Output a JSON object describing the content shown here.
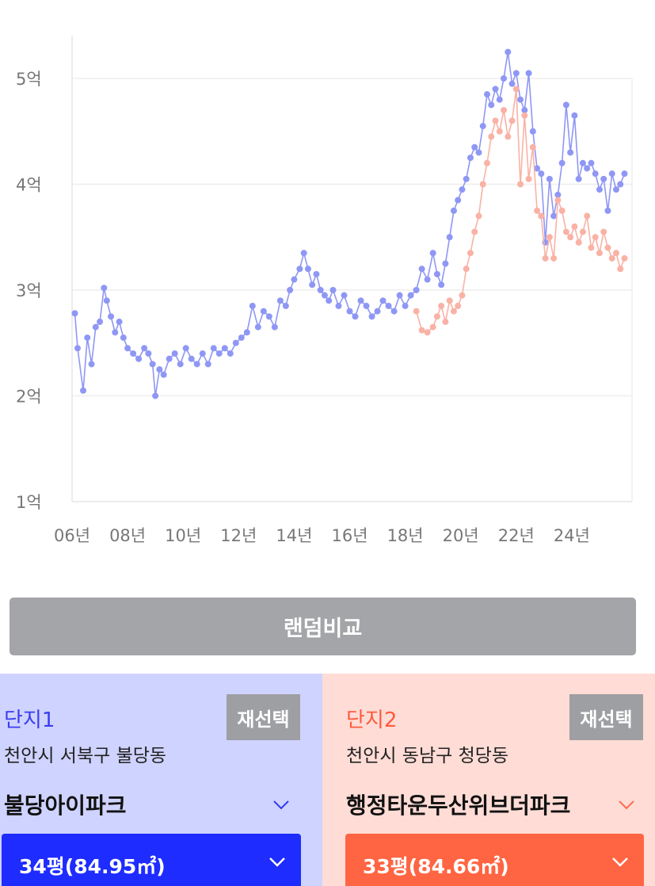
{
  "chart_data": {
    "type": "line",
    "y_ticks": [
      "5억",
      "4억",
      "3억",
      "2억",
      "1억"
    ],
    "x_ticks": [
      "06년",
      "08년",
      "10년",
      "12년",
      "14년",
      "16년",
      "18년",
      "20년",
      "22년",
      "24년"
    ],
    "ylim": [
      1,
      5.4
    ],
    "xlim": [
      2006,
      2026
    ],
    "grid": true,
    "series": [
      {
        "color": "#8f97f5",
        "x": [
          2006.1,
          2006.2,
          2006.4,
          2006.55,
          2006.7,
          2006.85,
          2007.0,
          2007.15,
          2007.25,
          2007.4,
          2007.55,
          2007.7,
          2007.85,
          2008.0,
          2008.2,
          2008.4,
          2008.6,
          2008.75,
          2008.9,
          2009.0,
          2009.15,
          2009.3,
          2009.5,
          2009.7,
          2009.9,
          2010.1,
          2010.3,
          2010.5,
          2010.7,
          2010.9,
          2011.1,
          2011.3,
          2011.5,
          2011.7,
          2011.9,
          2012.1,
          2012.3,
          2012.5,
          2012.7,
          2012.9,
          2013.1,
          2013.3,
          2013.5,
          2013.7,
          2013.85,
          2014.0,
          2014.2,
          2014.35,
          2014.5,
          2014.65,
          2014.8,
          2014.95,
          2015.1,
          2015.25,
          2015.4,
          2015.6,
          2015.8,
          2016.0,
          2016.2,
          2016.4,
          2016.6,
          2016.8,
          2017.0,
          2017.2,
          2017.4,
          2017.6,
          2017.8,
          2018.0,
          2018.2,
          2018.4,
          2018.6,
          2018.8,
          2019.0,
          2019.15,
          2019.3,
          2019.45,
          2019.6,
          2019.75,
          2019.9,
          2020.05,
          2020.2,
          2020.35,
          2020.5,
          2020.65,
          2020.8,
          2020.95,
          2021.1,
          2021.25,
          2021.4,
          2021.55,
          2021.7,
          2021.85,
          2022.0,
          2022.15,
          2022.3,
          2022.45,
          2022.6,
          2022.75,
          2022.9,
          2023.05,
          2023.2,
          2023.35,
          2023.5,
          2023.65,
          2023.8,
          2023.95,
          2024.1,
          2024.25,
          2024.4,
          2024.55,
          2024.7,
          2024.85,
          2025.0,
          2025.15,
          2025.3,
          2025.45,
          2025.6,
          2025.75,
          2025.9
        ],
        "y": [
          2.78,
          2.45,
          2.05,
          2.55,
          2.3,
          2.65,
          2.7,
          3.02,
          2.9,
          2.75,
          2.6,
          2.7,
          2.55,
          2.45,
          2.4,
          2.35,
          2.45,
          2.4,
          2.3,
          2.0,
          2.25,
          2.2,
          2.35,
          2.4,
          2.3,
          2.45,
          2.35,
          2.3,
          2.4,
          2.3,
          2.45,
          2.4,
          2.45,
          2.4,
          2.5,
          2.55,
          2.6,
          2.85,
          2.65,
          2.8,
          2.75,
          2.65,
          2.9,
          2.85,
          3.0,
          3.1,
          3.2,
          3.35,
          3.2,
          3.05,
          3.15,
          3.0,
          2.95,
          2.9,
          3.0,
          2.85,
          2.95,
          2.8,
          2.75,
          2.9,
          2.85,
          2.75,
          2.8,
          2.9,
          2.85,
          2.8,
          2.95,
          2.85,
          2.95,
          3.0,
          3.2,
          3.1,
          3.35,
          3.15,
          3.05,
          3.25,
          3.5,
          3.75,
          3.85,
          3.95,
          4.05,
          4.25,
          4.35,
          4.3,
          4.55,
          4.85,
          4.75,
          4.9,
          4.8,
          5.0,
          5.25,
          4.95,
          5.05,
          4.8,
          4.7,
          5.05,
          4.5,
          4.15,
          4.1,
          3.45,
          4.05,
          3.7,
          3.9,
          4.2,
          4.75,
          4.3,
          4.65,
          4.05,
          4.2,
          4.15,
          4.2,
          4.1,
          3.95,
          4.05,
          3.75,
          4.1,
          3.95,
          4.0,
          4.1
        ]
      },
      {
        "color": "#f9b2a5",
        "x": [
          2018.4,
          2018.6,
          2018.8,
          2019.0,
          2019.15,
          2019.3,
          2019.45,
          2019.6,
          2019.75,
          2019.9,
          2020.05,
          2020.2,
          2020.35,
          2020.5,
          2020.65,
          2020.8,
          2020.95,
          2021.1,
          2021.25,
          2021.4,
          2021.55,
          2021.7,
          2021.85,
          2022.0,
          2022.15,
          2022.3,
          2022.45,
          2022.6,
          2022.75,
          2022.9,
          2023.05,
          2023.2,
          2023.35,
          2023.5,
          2023.65,
          2023.8,
          2023.95,
          2024.1,
          2024.25,
          2024.4,
          2024.55,
          2024.7,
          2024.85,
          2025.0,
          2025.15,
          2025.3,
          2025.45,
          2025.6,
          2025.75,
          2025.9
        ],
        "y": [
          2.8,
          2.62,
          2.6,
          2.65,
          2.75,
          2.85,
          2.7,
          2.9,
          2.8,
          2.85,
          2.95,
          3.2,
          3.35,
          3.55,
          3.7,
          4.0,
          4.2,
          4.45,
          4.6,
          4.5,
          4.7,
          4.45,
          4.6,
          4.9,
          4.0,
          4.65,
          4.05,
          4.35,
          3.75,
          3.7,
          3.3,
          3.5,
          3.3,
          3.85,
          3.75,
          3.55,
          3.5,
          3.6,
          3.45,
          3.55,
          3.7,
          3.4,
          3.5,
          3.35,
          3.55,
          3.4,
          3.3,
          3.35,
          3.2,
          3.3
        ]
      }
    ]
  },
  "compare_button": {
    "label": "랜덤비교"
  },
  "complex1": {
    "label": "단지1",
    "reselect_label": "재선택",
    "region": "천안시 서북구 불당동",
    "name": "불당아이파크",
    "size": "34평(84.95㎡)",
    "accent": "#1e2cff"
  },
  "complex2": {
    "label": "단지2",
    "reselect_label": "재선택",
    "region": "천안시 동남구 청당동",
    "name": "행정타운두산위브더파크",
    "size": "33평(84.66㎡)",
    "accent": "#ff6542"
  }
}
